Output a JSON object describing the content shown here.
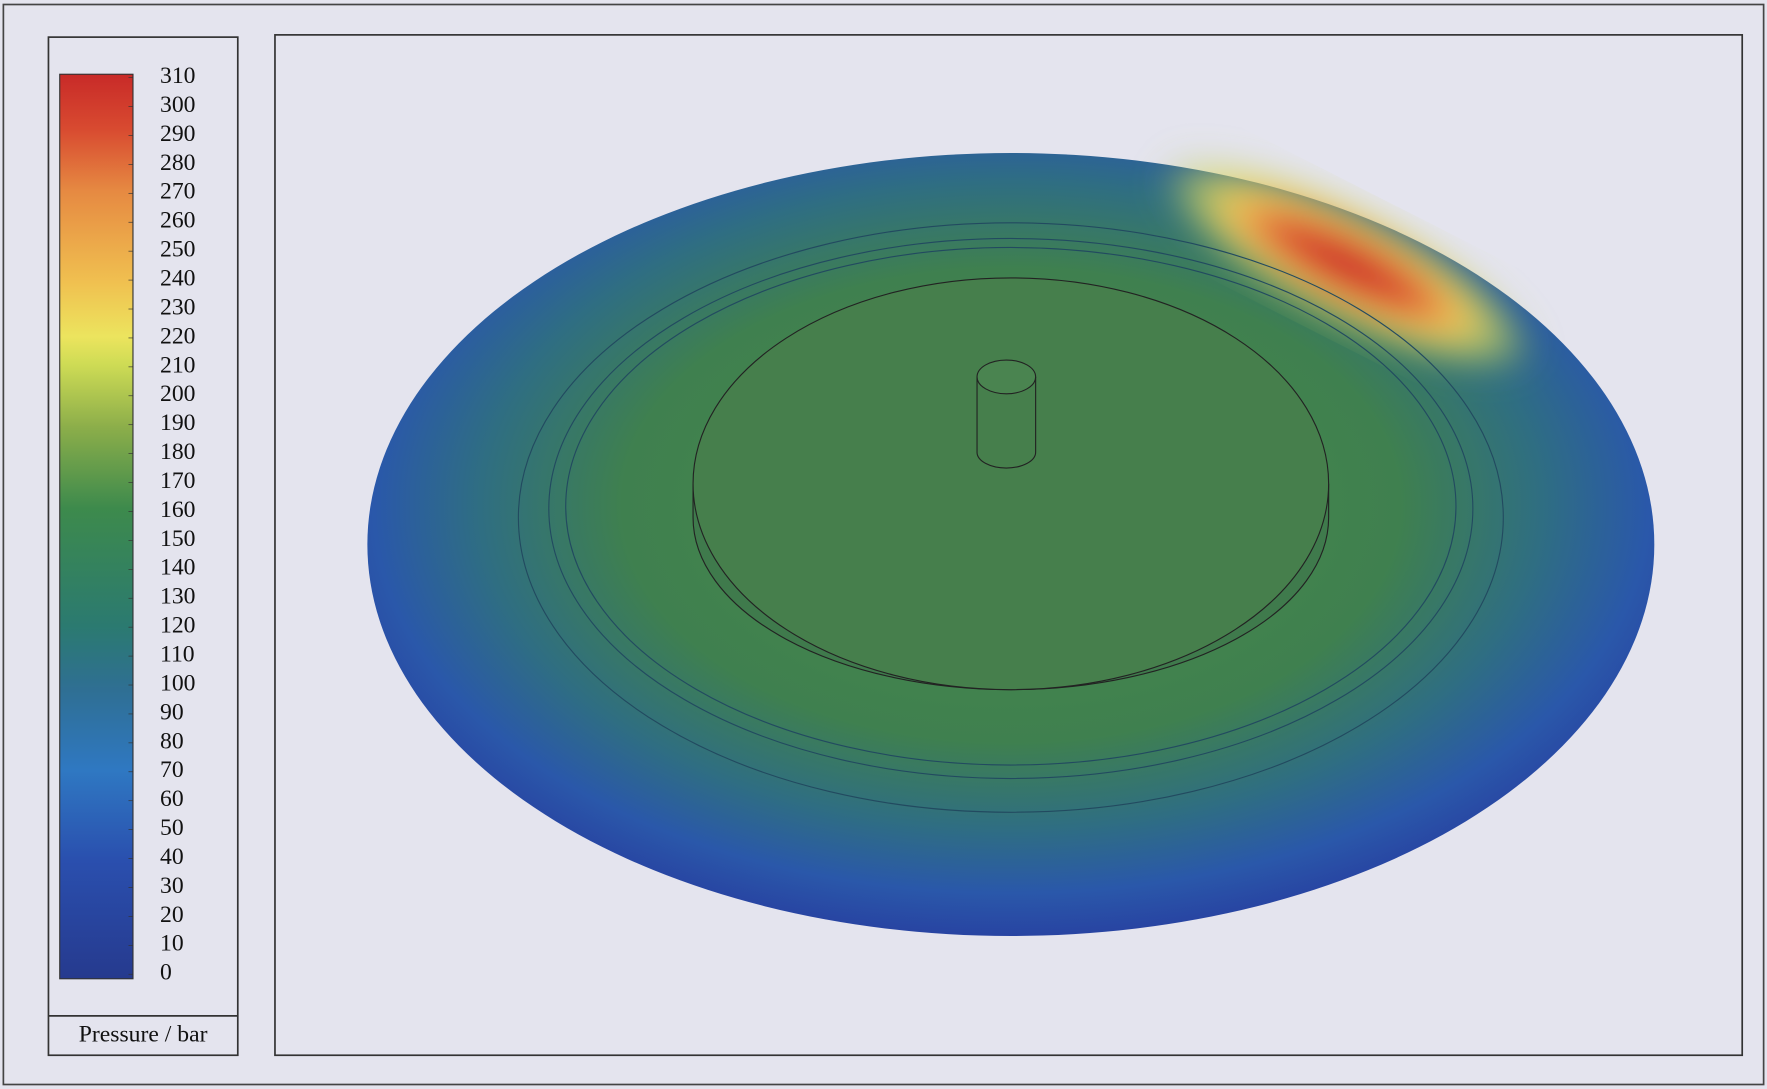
{
  "colorbar": {
    "label": "Pressure / bar",
    "lim": [
      0,
      310
    ],
    "ticks": [
      0,
      10,
      20,
      30,
      40,
      50,
      60,
      70,
      80,
      90,
      100,
      110,
      120,
      130,
      140,
      150,
      160,
      170,
      180,
      190,
      200,
      210,
      220,
      230,
      240,
      250,
      260,
      270,
      280,
      290,
      300,
      310
    ]
  }
}
